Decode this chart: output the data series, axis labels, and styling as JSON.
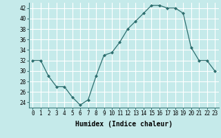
{
  "x": [
    0,
    1,
    2,
    3,
    4,
    5,
    6,
    7,
    8,
    9,
    10,
    11,
    12,
    13,
    14,
    15,
    16,
    17,
    18,
    19,
    20,
    21,
    22,
    23
  ],
  "y": [
    32,
    32,
    29,
    27,
    27,
    25,
    23.5,
    24.5,
    29,
    33,
    33.5,
    35.5,
    38,
    39.5,
    41,
    42.5,
    42.5,
    42,
    42,
    41,
    34.5,
    32,
    32,
    30
  ],
  "line_color": "#2d6e6e",
  "marker": "D",
  "marker_size": 2,
  "bg_color": "#c5eaea",
  "grid_color": "#ffffff",
  "xlabel": "Humidex (Indice chaleur)",
  "xlim": [
    -0.5,
    23.5
  ],
  "ylim": [
    23,
    43
  ],
  "yticks": [
    24,
    26,
    28,
    30,
    32,
    34,
    36,
    38,
    40,
    42
  ],
  "xticks": [
    0,
    1,
    2,
    3,
    4,
    5,
    6,
    7,
    8,
    9,
    10,
    11,
    12,
    13,
    14,
    15,
    16,
    17,
    18,
    19,
    20,
    21,
    22,
    23
  ],
  "tick_fontsize": 5.5,
  "xlabel_fontsize": 7,
  "linewidth": 0.9
}
